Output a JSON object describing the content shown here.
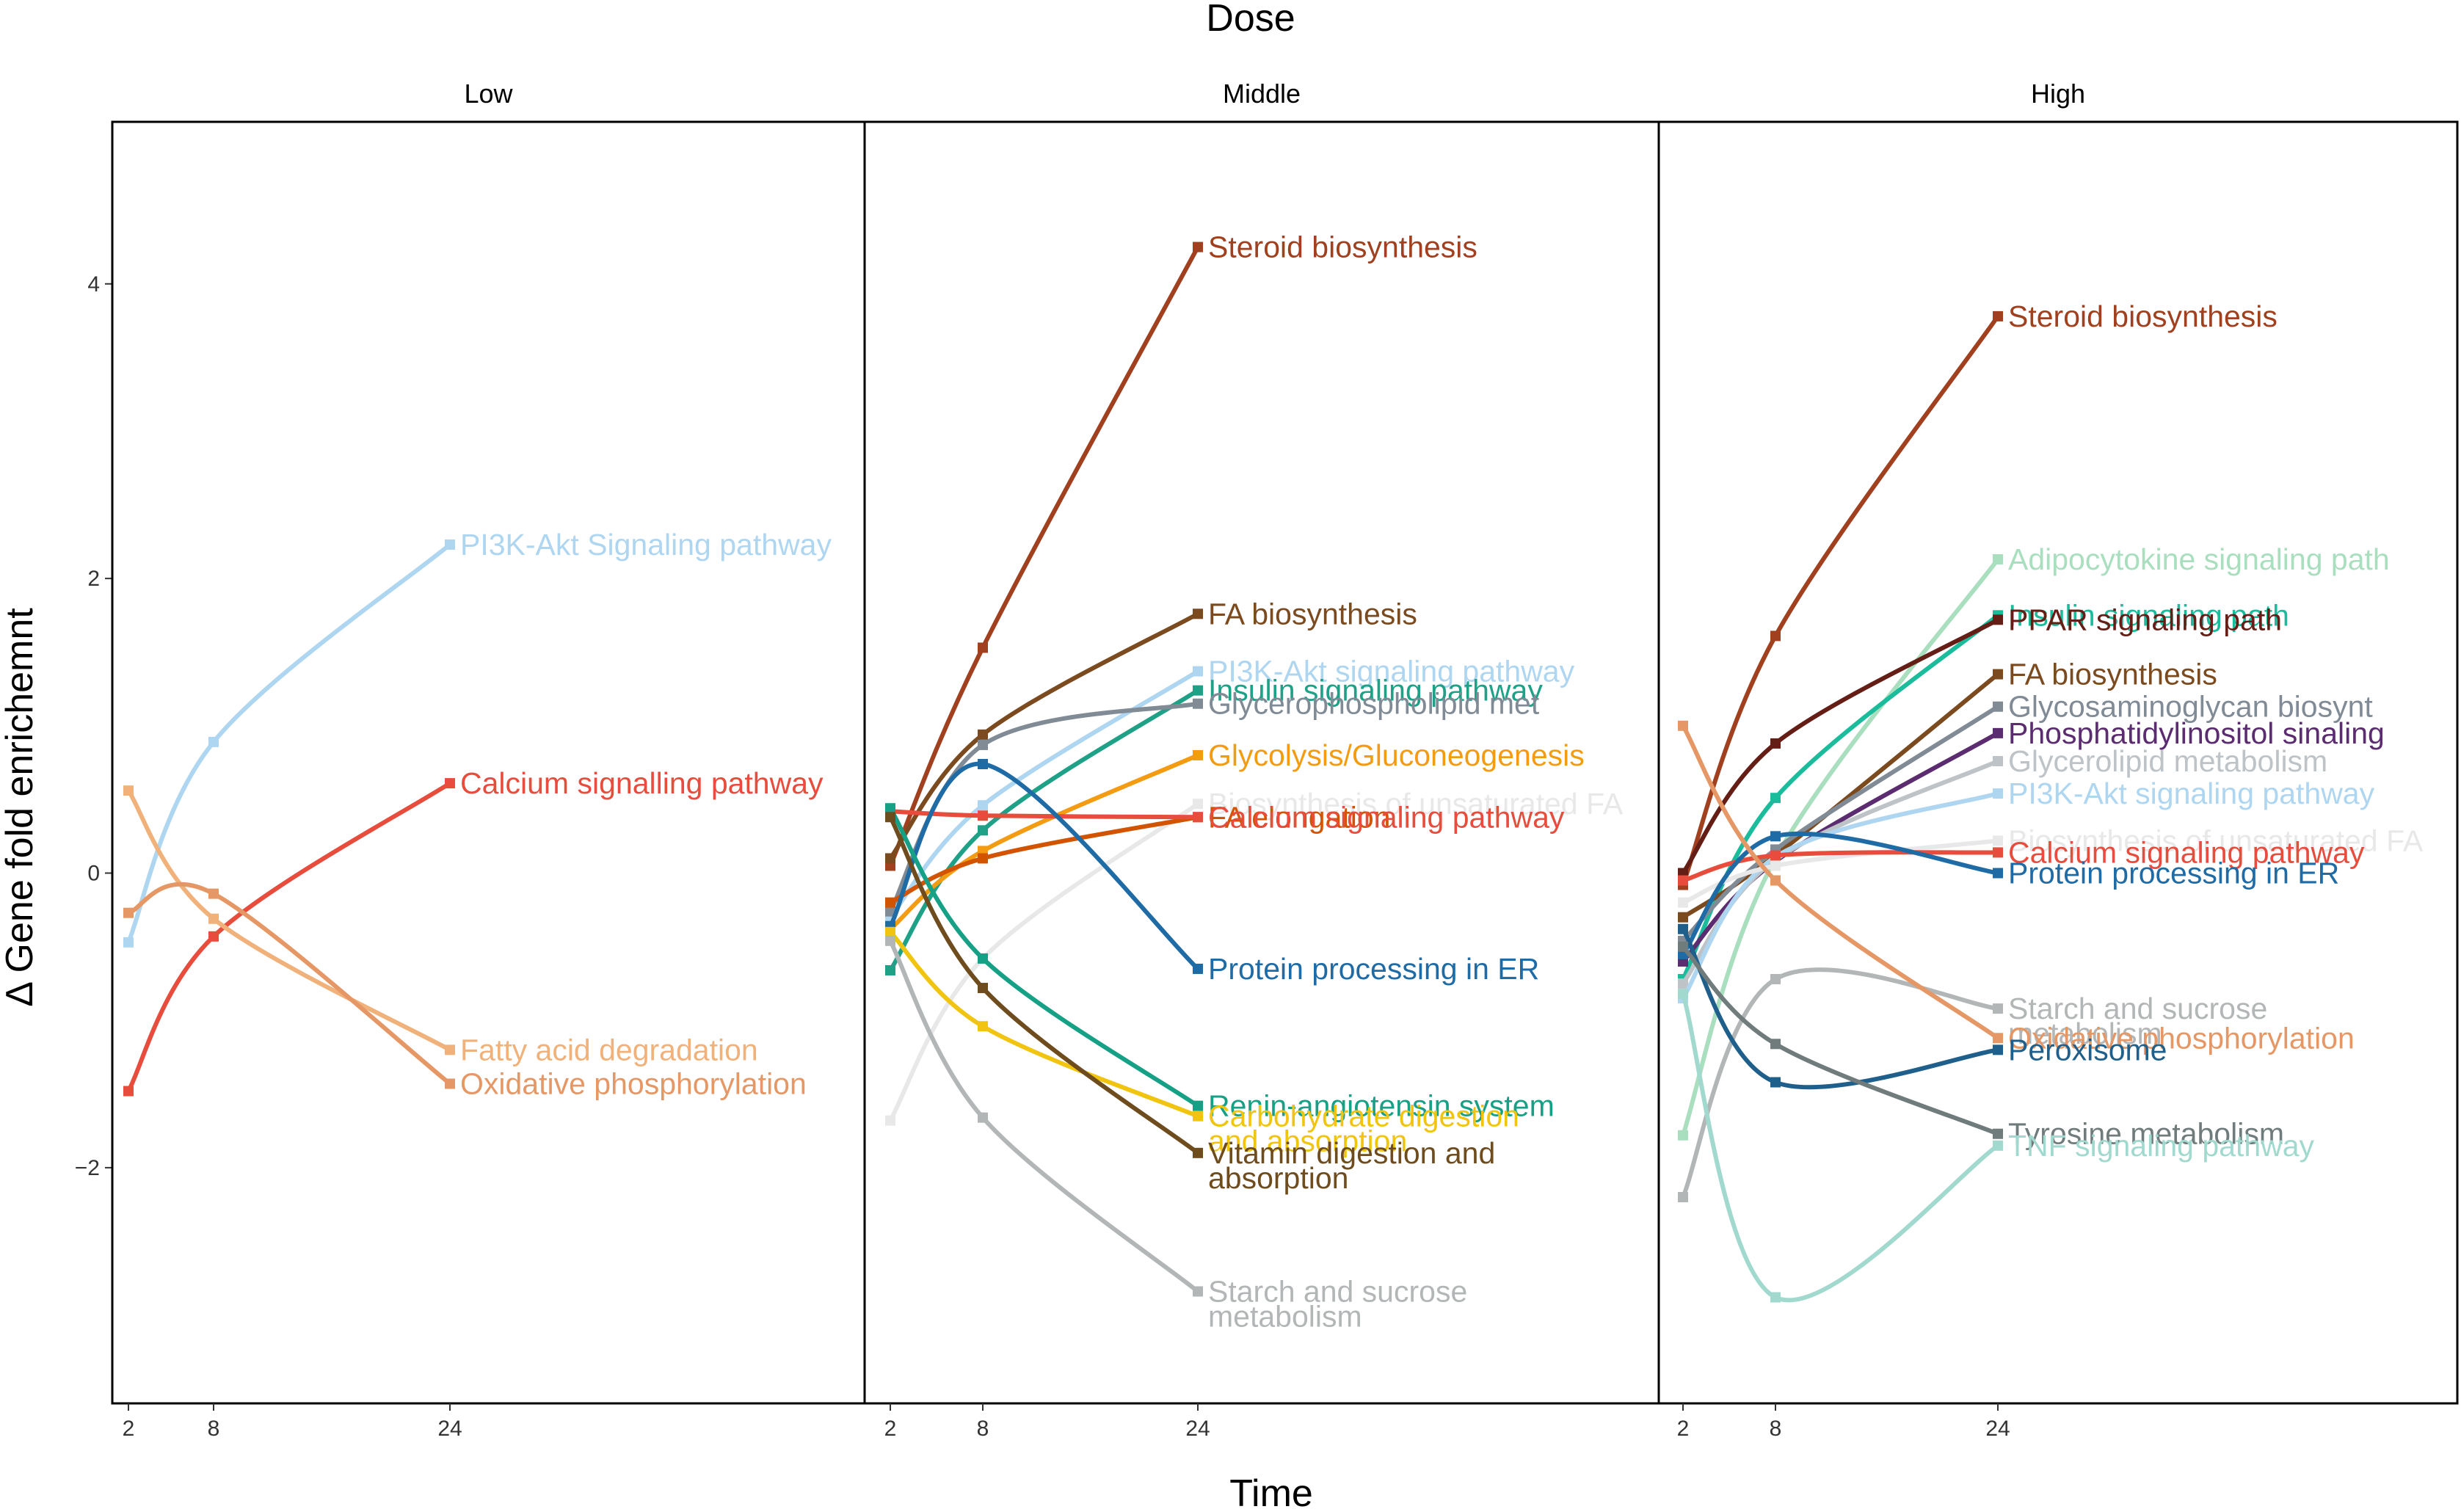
{
  "chart_data": {
    "type": "line",
    "title": "Dose",
    "xlabel": "Time",
    "ylabel": "Δ Gene fold enrichemnt",
    "x": [
      2,
      8,
      24
    ],
    "x_ticks": [
      "2",
      "8",
      "24"
    ],
    "ylim": [
      -3.6,
      5.1
    ],
    "y_ticks": [
      {
        "value": 4,
        "label": "4"
      },
      {
        "value": 2,
        "label": "2"
      },
      {
        "value": 0,
        "label": "0"
      },
      {
        "value": -2,
        "label": "−2"
      }
    ],
    "panels": [
      {
        "name": "Low",
        "series": [
          {
            "name": "PI3K-Akt Signaling pathway",
            "label_lines": [
              "PI3K-Akt Signaling pathway"
            ],
            "color": "#AED6F1",
            "values": [
              -0.47,
              0.89,
              2.23
            ]
          },
          {
            "name": "Calcium signalling pathway",
            "label_lines": [
              "Calcium signalling pathway"
            ],
            "color": "#E74C3C",
            "values": [
              -1.48,
              -0.43,
              0.61
            ]
          },
          {
            "name": "Fatty acid degradation",
            "label_lines": [
              "Fatty acid degradation"
            ],
            "color": "#F0B27A",
            "values": [
              0.56,
              -0.31,
              -1.2
            ]
          },
          {
            "name": "Oxidative phosphorylation",
            "label_lines": [
              "Oxidative phosphorylation"
            ],
            "color": "#E59866",
            "values": [
              -0.27,
              -0.14,
              -1.43
            ]
          }
        ]
      },
      {
        "name": "Middle",
        "series": [
          {
            "name": "Steroid biosynthesis",
            "label_lines": [
              "Steroid biosynthesis"
            ],
            "color": "#A0401F",
            "values": [
              0.05,
              1.53,
              4.25
            ]
          },
          {
            "name": "FA biosynthesis",
            "label_lines": [
              "FA biosynthesis"
            ],
            "color": "#7B4A1E",
            "values": [
              0.1,
              0.94,
              1.76
            ]
          },
          {
            "name": "PI3K-Akt signaling pathway",
            "label_lines": [
              "PI3K-Akt signaling pathway"
            ],
            "color": "#AED6F1",
            "values": [
              -0.3,
              0.46,
              1.37
            ]
          },
          {
            "name": "Insulin signaling pathway",
            "label_lines": [
              "Insulin signaling pathway"
            ],
            "color": "#1FA187",
            "values": [
              -0.66,
              0.29,
              1.24
            ]
          },
          {
            "name": "Glycerophospholipid met",
            "label_lines": [
              "Glycerophospholipid met"
            ],
            "color": "#808B96",
            "values": [
              -0.26,
              0.87,
              1.15
            ]
          },
          {
            "name": "Glycolysis/Gluconeogenesis",
            "label_lines": [
              "Glycolysis/Gluconeogenesis"
            ],
            "color": "#F39C12",
            "values": [
              -0.38,
              0.15,
              0.8
            ]
          },
          {
            "name": "Biosynthesis of unsaturated FA",
            "label_lines": [
              "Biosynthesis of unsaturated FA"
            ],
            "color": "#E8E8E8",
            "values": [
              -1.68,
              -0.58,
              0.47
            ]
          },
          {
            "name": "FA elongation",
            "label_lines": [
              "FA elongation"
            ],
            "color": "#D35400",
            "values": [
              -0.2,
              0.1,
              0.38
            ]
          },
          {
            "name": "Calcium signaling pathway",
            "label_lines": [
              "Calcium signaling pathway"
            ],
            "color": "#E74C3C",
            "values": [
              0.42,
              0.39,
              0.38
            ]
          },
          {
            "name": "Protein processing in ER",
            "label_lines": [
              "Protein processing in ER"
            ],
            "color": "#1F6BA5",
            "values": [
              -0.36,
              0.74,
              -0.65
            ]
          },
          {
            "name": "Renin-angiotensin system",
            "label_lines": [
              "Renin-angiotensin system"
            ],
            "color": "#16A085",
            "values": [
              0.44,
              -0.58,
              -1.58
            ]
          },
          {
            "name": "Carbohydrate digestion and absorption",
            "label_lines": [
              "Carbohydrate digestion",
              "and absorption"
            ],
            "color": "#F1C40F",
            "values": [
              -0.4,
              -1.04,
              -1.65
            ]
          },
          {
            "name": "Vitamin digestion and absorption",
            "label_lines": [
              "Vitamin digestion and",
              "absorption"
            ],
            "color": "#6E4C1E",
            "values": [
              0.38,
              -0.78,
              -1.9
            ]
          },
          {
            "name": "Starch and sucrose metabolism",
            "label_lines": [
              "Starch and sucrose",
              "metabolism"
            ],
            "color": "#B3B6B7",
            "values": [
              -0.46,
              -1.66,
              -2.84
            ]
          }
        ]
      },
      {
        "name": "High",
        "series": [
          {
            "name": "Steroid biosynthesis",
            "label_lines": [
              "Steroid biosynthesis"
            ],
            "color": "#A0401F",
            "values": [
              -0.08,
              1.61,
              3.78
            ]
          },
          {
            "name": "Adipocytokine signaling path",
            "label_lines": [
              "Adipocytokine signaling path"
            ],
            "color": "#A9DFBF",
            "values": [
              -1.78,
              0.1,
              2.13
            ]
          },
          {
            "name": "Insulin signaling path",
            "label_lines": [
              "Insulin signaling path"
            ],
            "color": "#1ABC9C",
            "values": [
              -0.72,
              0.51,
              1.75
            ]
          },
          {
            "name": "PPAR signaling path",
            "label_lines": [
              "PPAR signaling path"
            ],
            "color": "#641E16",
            "values": [
              0.0,
              0.88,
              1.72
            ]
          },
          {
            "name": "FA biosynthesis",
            "label_lines": [
              "FA biosynthesis"
            ],
            "color": "#7B4A1E",
            "values": [
              -0.3,
              0.12,
              1.35
            ]
          },
          {
            "name": "Glycosaminoglycan biosynt",
            "label_lines": [
              "Glycosaminoglycan biosynt"
            ],
            "color": "#808B96",
            "values": [
              -0.46,
              0.16,
              1.13
            ]
          },
          {
            "name": "Phosphatidylinositol sinaling",
            "label_lines": [
              "Phosphatidylinositol sinaling"
            ],
            "color": "#5B2C6F",
            "values": [
              -0.6,
              0.08,
              0.95
            ]
          },
          {
            "name": "Glycerolipid metabolism",
            "label_lines": [
              "Glycerolipid metabolism"
            ],
            "color": "#BDC3C7",
            "values": [
              -0.75,
              0.09,
              0.76
            ]
          },
          {
            "name": "PI3K-Akt signaling pathway",
            "label_lines": [
              "PI3K-Akt signaling pathway"
            ],
            "color": "#AED6F1",
            "values": [
              -0.85,
              0.11,
              0.54
            ]
          },
          {
            "name": "Biosynthesis of unsaturated FA",
            "label_lines": [
              "Biosynthesis of unsaturated FA"
            ],
            "color": "#E8E8E8",
            "values": [
              -0.2,
              0.05,
              0.22
            ]
          },
          {
            "name": "Calcium signaling pathway",
            "label_lines": [
              "Calcium signaling pathway"
            ],
            "color": "#E74C3C",
            "values": [
              -0.05,
              0.12,
              0.14
            ]
          },
          {
            "name": "Protein processing in ER",
            "label_lines": [
              "Protein processing in ER"
            ],
            "color": "#1F6BA5",
            "values": [
              -0.55,
              0.25,
              0.0
            ]
          },
          {
            "name": "Starch and sucrose metabolism",
            "label_lines": [
              "Starch and sucrose",
              "metabolism"
            ],
            "color": "#B3B6B7",
            "values": [
              -2.2,
              -0.72,
              -0.92
            ]
          },
          {
            "name": "Oxidative phosphorylation",
            "label_lines": [
              "Oxidative phosphorylation"
            ],
            "color": "#E59866",
            "values": [
              1.0,
              -0.05,
              -1.12
            ]
          },
          {
            "name": "Peroxisome",
            "label_lines": [
              "Peroxisome"
            ],
            "color": "#1F5F8B",
            "values": [
              -0.38,
              -1.42,
              -1.2
            ]
          },
          {
            "name": "Tyrosine metabolism",
            "label_lines": [
              "Tyrosine metabolism"
            ],
            "color": "#707B7C",
            "values": [
              -0.5,
              -1.16,
              -1.77
            ]
          },
          {
            "name": "TNF signaling pathway",
            "label_lines": [
              "TNF signaling pathway"
            ],
            "color": "#A2D9CE",
            "values": [
              -0.82,
              -2.88,
              -1.85
            ]
          }
        ]
      }
    ]
  }
}
